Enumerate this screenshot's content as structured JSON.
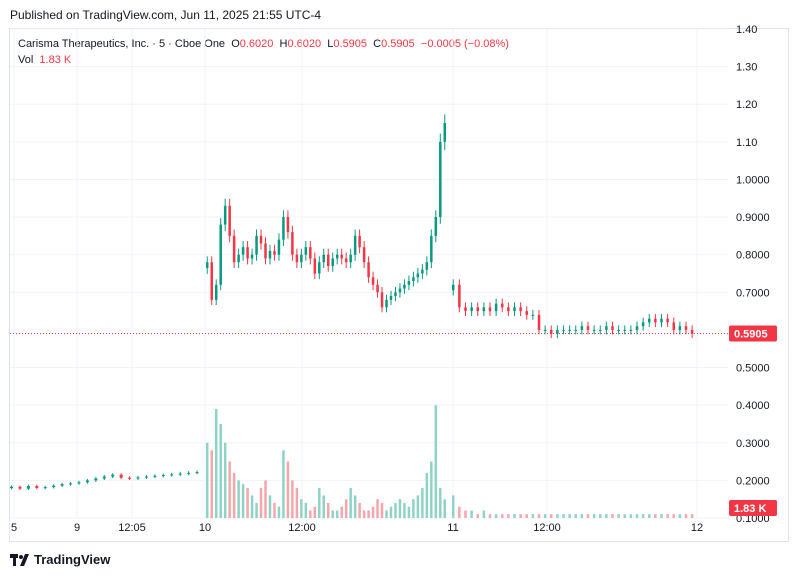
{
  "header": {
    "published": "Published on TradingView.com, Jun 11, 2025 21:55 UTC-4"
  },
  "legend": {
    "symbol": "Carisma Therapeutics, Inc. · 5 · Cboe One",
    "o_label": "O",
    "o_value": "0.6020",
    "h_label": "H",
    "h_value": "0.6020",
    "l_label": "L",
    "l_value": "0.5905",
    "c_label": "C",
    "c_value": "0.5905",
    "change": "−0.0005 (−0.08%)",
    "vol_label": "Vol",
    "vol_value": "1.83 K"
  },
  "footer": {
    "brand": "TradingView",
    "logo_icon": "tradingview-logo-icon"
  },
  "colors": {
    "up": "#089981",
    "down": "#f23645",
    "vol_up": "#8fd3c6",
    "vol_down": "#f5a6ab",
    "grid": "#f0f3fa"
  },
  "chart_data": {
    "type": "candlestick",
    "y_axis": {
      "min": 0.1,
      "max": 1.4,
      "ticks": [
        "1.40",
        "1.30",
        "1.20",
        "1.10",
        "1.0000",
        "0.9000",
        "0.8000",
        "0.7000",
        "0.6000",
        "0.5000",
        "0.4000",
        "0.3000",
        "0.2000",
        "0.1000"
      ]
    },
    "x_axis": {
      "labels": [
        "5",
        "9",
        "12:05",
        "10",
        "12:00",
        "11",
        "12:00",
        "12"
      ]
    },
    "last_price": {
      "value": 0.5905,
      "label": "0.5905"
    },
    "last_volume": {
      "label": "1.83 K"
    },
    "price_pre_day10": [
      0.183,
      0.178,
      0.185,
      0.18,
      0.182,
      0.186,
      0.19,
      0.192,
      0.195,
      0.2,
      0.205,
      0.21,
      0.215,
      0.207,
      0.205,
      0.208,
      0.21,
      0.212,
      0.214,
      0.216,
      0.218,
      0.22,
      0.222
    ],
    "day10_close": [
      0.78,
      0.68,
      0.72,
      0.88,
      0.93,
      0.85,
      0.78,
      0.8,
      0.82,
      0.79,
      0.8,
      0.85,
      0.83,
      0.79,
      0.81,
      0.8,
      0.84,
      0.9,
      0.86,
      0.8,
      0.78,
      0.8,
      0.82,
      0.79,
      0.75,
      0.78,
      0.8,
      0.77,
      0.79,
      0.8,
      0.79,
      0.78,
      0.8,
      0.85,
      0.82,
      0.78,
      0.74,
      0.72,
      0.7,
      0.66,
      0.68,
      0.69,
      0.7,
      0.71,
      0.72,
      0.73,
      0.74,
      0.75,
      0.76,
      0.78,
      0.85,
      0.9,
      1.1,
      1.15
    ],
    "day11_close": [
      0.72,
      0.66,
      0.65,
      0.66,
      0.65,
      0.66,
      0.65,
      0.67,
      0.66,
      0.65,
      0.66,
      0.65,
      0.64,
      0.64,
      0.6,
      0.6,
      0.59,
      0.6,
      0.6,
      0.6,
      0.6,
      0.61,
      0.6,
      0.6,
      0.6,
      0.61,
      0.6,
      0.6,
      0.6,
      0.6,
      0.61,
      0.62,
      0.63,
      0.62,
      0.63,
      0.62,
      0.6,
      0.61,
      0.6,
      0.59
    ],
    "volume_profile_day10": [
      0.3,
      0.28,
      0.39,
      0.35,
      0.3,
      0.25,
      0.22,
      0.2,
      0.19,
      0.18,
      0.16,
      0.14,
      0.18,
      0.2,
      0.16,
      0.14,
      0.13,
      0.28,
      0.25,
      0.2,
      0.18,
      0.15,
      0.14,
      0.12,
      0.13,
      0.18,
      0.16,
      0.14,
      0.12,
      0.12,
      0.13,
      0.15,
      0.18,
      0.16,
      0.14,
      0.12,
      0.12,
      0.13,
      0.15,
      0.14,
      0.12,
      0.13,
      0.14,
      0.15,
      0.14,
      0.13,
      0.15,
      0.16,
      0.18,
      0.22,
      0.25,
      0.4,
      0.18,
      0.15
    ],
    "volume_profile_day11": [
      0.16,
      0.13,
      0.12,
      0.12,
      0.11,
      0.12,
      0.11,
      0.11,
      0.11,
      0.11,
      0.11,
      0.11,
      0.11,
      0.11,
      0.11,
      0.11,
      0.11,
      0.11,
      0.11,
      0.11,
      0.11,
      0.11,
      0.11,
      0.11,
      0.11,
      0.11,
      0.11,
      0.11,
      0.11,
      0.11,
      0.11,
      0.11,
      0.11,
      0.11,
      0.11,
      0.11,
      0.11,
      0.11,
      0.11,
      0.11
    ]
  }
}
